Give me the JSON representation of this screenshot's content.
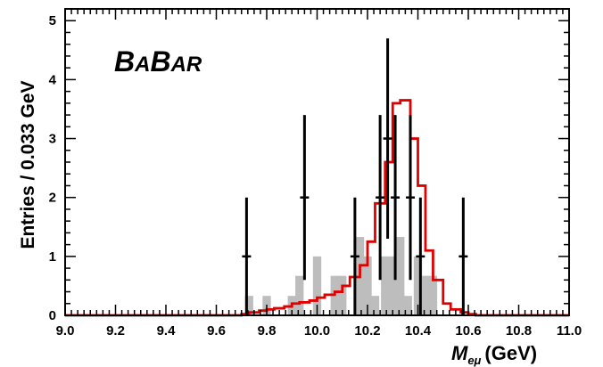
{
  "chart_data": {
    "type": "histogram",
    "experiment_label": {
      "big1": "B",
      "small1": "A",
      "big2": "B",
      "small2": "AR"
    },
    "ylabel": "Entries / 0.033 GeV",
    "xlabel": {
      "symbol": "M",
      "subscript": "eμ",
      "units": "(GeV)"
    },
    "xlim": [
      9.0,
      11.0
    ],
    "ylim": [
      0,
      5.2
    ],
    "x_ticks": [
      "9.0",
      "9.2",
      "9.4",
      "9.6",
      "9.8",
      "10.0",
      "10.2",
      "10.4",
      "10.6",
      "10.8",
      "11.0"
    ],
    "y_ticks": [
      "0",
      "1",
      "2",
      "3",
      "4",
      "5"
    ],
    "grid": false,
    "bin_width": 0.033,
    "series": [
      {
        "kind": "data_points",
        "color": "#000000",
        "points": [
          {
            "x": 9.72,
            "y": 1,
            "yerr": 1
          },
          {
            "x": 9.95,
            "y": 2,
            "yerr": 1.4
          },
          {
            "x": 10.15,
            "y": 1,
            "yerr": 1
          },
          {
            "x": 10.25,
            "y": 2,
            "yerr": 1.4
          },
          {
            "x": 10.28,
            "y": 3,
            "yerr": 1.7
          },
          {
            "x": 10.31,
            "y": 2,
            "yerr": 1.4
          },
          {
            "x": 10.37,
            "y": 2,
            "yerr": 1.4
          },
          {
            "x": 10.41,
            "y": 1,
            "yerr": 1
          },
          {
            "x": 10.58,
            "y": 1,
            "yerr": 1
          }
        ]
      },
      {
        "kind": "filled_histogram",
        "color": "#bdbdbd",
        "bins": [
          {
            "x": 9.73,
            "y": 0.33
          },
          {
            "x": 9.8,
            "y": 0.33
          },
          {
            "x": 9.9,
            "y": 0.33
          },
          {
            "x": 9.93,
            "y": 0.67
          },
          {
            "x": 10.0,
            "y": 1.0
          },
          {
            "x": 10.07,
            "y": 0.67
          },
          {
            "x": 10.1,
            "y": 0.67
          },
          {
            "x": 10.17,
            "y": 1.33
          },
          {
            "x": 10.2,
            "y": 1.0
          },
          {
            "x": 10.23,
            "y": 0.33
          },
          {
            "x": 10.27,
            "y": 1.0
          },
          {
            "x": 10.3,
            "y": 1.0
          },
          {
            "x": 10.33,
            "y": 1.33
          },
          {
            "x": 10.36,
            "y": 0.33
          },
          {
            "x": 10.4,
            "y": 1.0
          },
          {
            "x": 10.43,
            "y": 0.67
          },
          {
            "x": 10.46,
            "y": 0.67
          }
        ]
      },
      {
        "kind": "step_histogram",
        "color": "#e00000",
        "steps": [
          {
            "x": 9.0,
            "y": 0
          },
          {
            "x": 9.7,
            "y": 0.02
          },
          {
            "x": 9.73,
            "y": 0.05
          },
          {
            "x": 9.77,
            "y": 0.08
          },
          {
            "x": 9.8,
            "y": 0.1
          },
          {
            "x": 9.83,
            "y": 0.12
          },
          {
            "x": 9.87,
            "y": 0.15
          },
          {
            "x": 9.9,
            "y": 0.2
          },
          {
            "x": 9.93,
            "y": 0.22
          },
          {
            "x": 9.97,
            "y": 0.25
          },
          {
            "x": 10.0,
            "y": 0.3
          },
          {
            "x": 10.03,
            "y": 0.35
          },
          {
            "x": 10.07,
            "y": 0.4
          },
          {
            "x": 10.1,
            "y": 0.5
          },
          {
            "x": 10.13,
            "y": 0.65
          },
          {
            "x": 10.17,
            "y": 0.85
          },
          {
            "x": 10.2,
            "y": 1.25
          },
          {
            "x": 10.23,
            "y": 1.9
          },
          {
            "x": 10.27,
            "y": 2.6
          },
          {
            "x": 10.3,
            "y": 3.6
          },
          {
            "x": 10.33,
            "y": 3.65
          },
          {
            "x": 10.37,
            "y": 3.0
          },
          {
            "x": 10.4,
            "y": 2.2
          },
          {
            "x": 10.43,
            "y": 1.1
          },
          {
            "x": 10.46,
            "y": 0.6
          },
          {
            "x": 10.5,
            "y": 0.2
          },
          {
            "x": 10.53,
            "y": 0.1
          },
          {
            "x": 10.57,
            "y": 0.05
          },
          {
            "x": 10.6,
            "y": 0.02
          },
          {
            "x": 10.63,
            "y": 0
          },
          {
            "x": 11.0,
            "y": 0
          }
        ]
      }
    ]
  }
}
